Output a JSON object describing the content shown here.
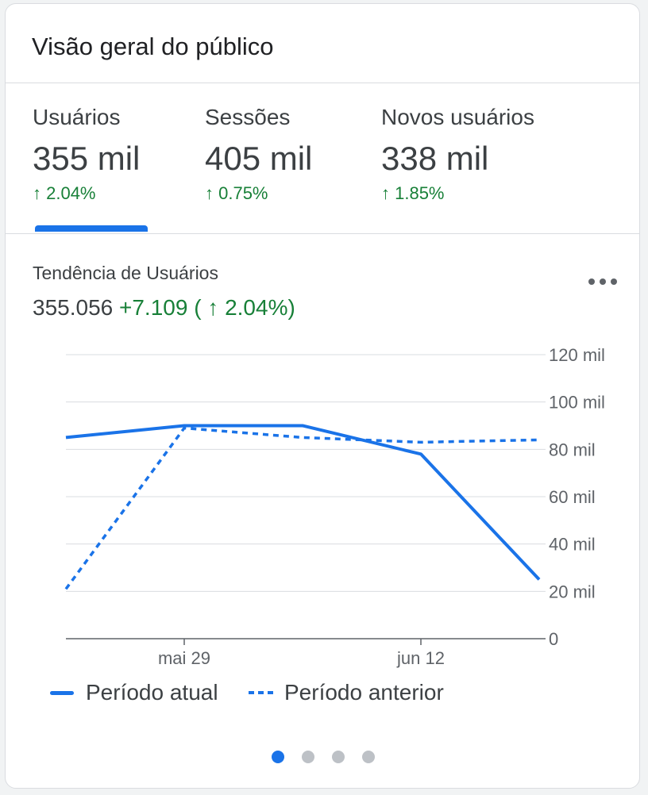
{
  "card": {
    "title": "Visão geral do público"
  },
  "metrics": [
    {
      "label": "Usuários",
      "value": "355 mil",
      "change": "↑ 2.04%",
      "selected": true
    },
    {
      "label": "Sessões",
      "value": "405 mil",
      "change": "↑ 0.75%",
      "selected": false
    },
    {
      "label": "Novos usuários",
      "value": "338 mil",
      "change": "↑ 1.85%",
      "selected": false
    }
  ],
  "trend": {
    "title": "Tendência de Usuários",
    "total": "355.056",
    "delta": "+7.109 ( ↑ 2.04%)",
    "more_icon": "more-horizontal-icon"
  },
  "legend": {
    "current": "Período atual",
    "previous": "Período anterior"
  },
  "pager": {
    "count": 4,
    "active_index": 0
  },
  "colors": {
    "accent": "#1a73e8",
    "positive": "#188038",
    "text": "#3c4043",
    "border": "#dadce0"
  },
  "chart_data": {
    "type": "line",
    "x": [
      "",
      "mai 29",
      "",
      "jun 12",
      ""
    ],
    "x_tick_labels": [
      "mai 29",
      "jun 12"
    ],
    "series": [
      {
        "name": "Período atual",
        "style": "solid",
        "values": [
          85000,
          90000,
          90000,
          78000,
          25000
        ]
      },
      {
        "name": "Período anterior",
        "style": "dashed",
        "values": [
          21000,
          89000,
          85000,
          83000,
          84000
        ]
      }
    ],
    "y_tick_labels": [
      "0",
      "20 mil",
      "40 mil",
      "60 mil",
      "80 mil",
      "100 mil",
      "120 mil"
    ],
    "y_ticks": [
      0,
      20000,
      40000,
      60000,
      80000,
      100000,
      120000
    ],
    "ylim": [
      0,
      120000
    ],
    "grid": true,
    "y_axis_position": "right",
    "legend_position": "bottom-left"
  }
}
